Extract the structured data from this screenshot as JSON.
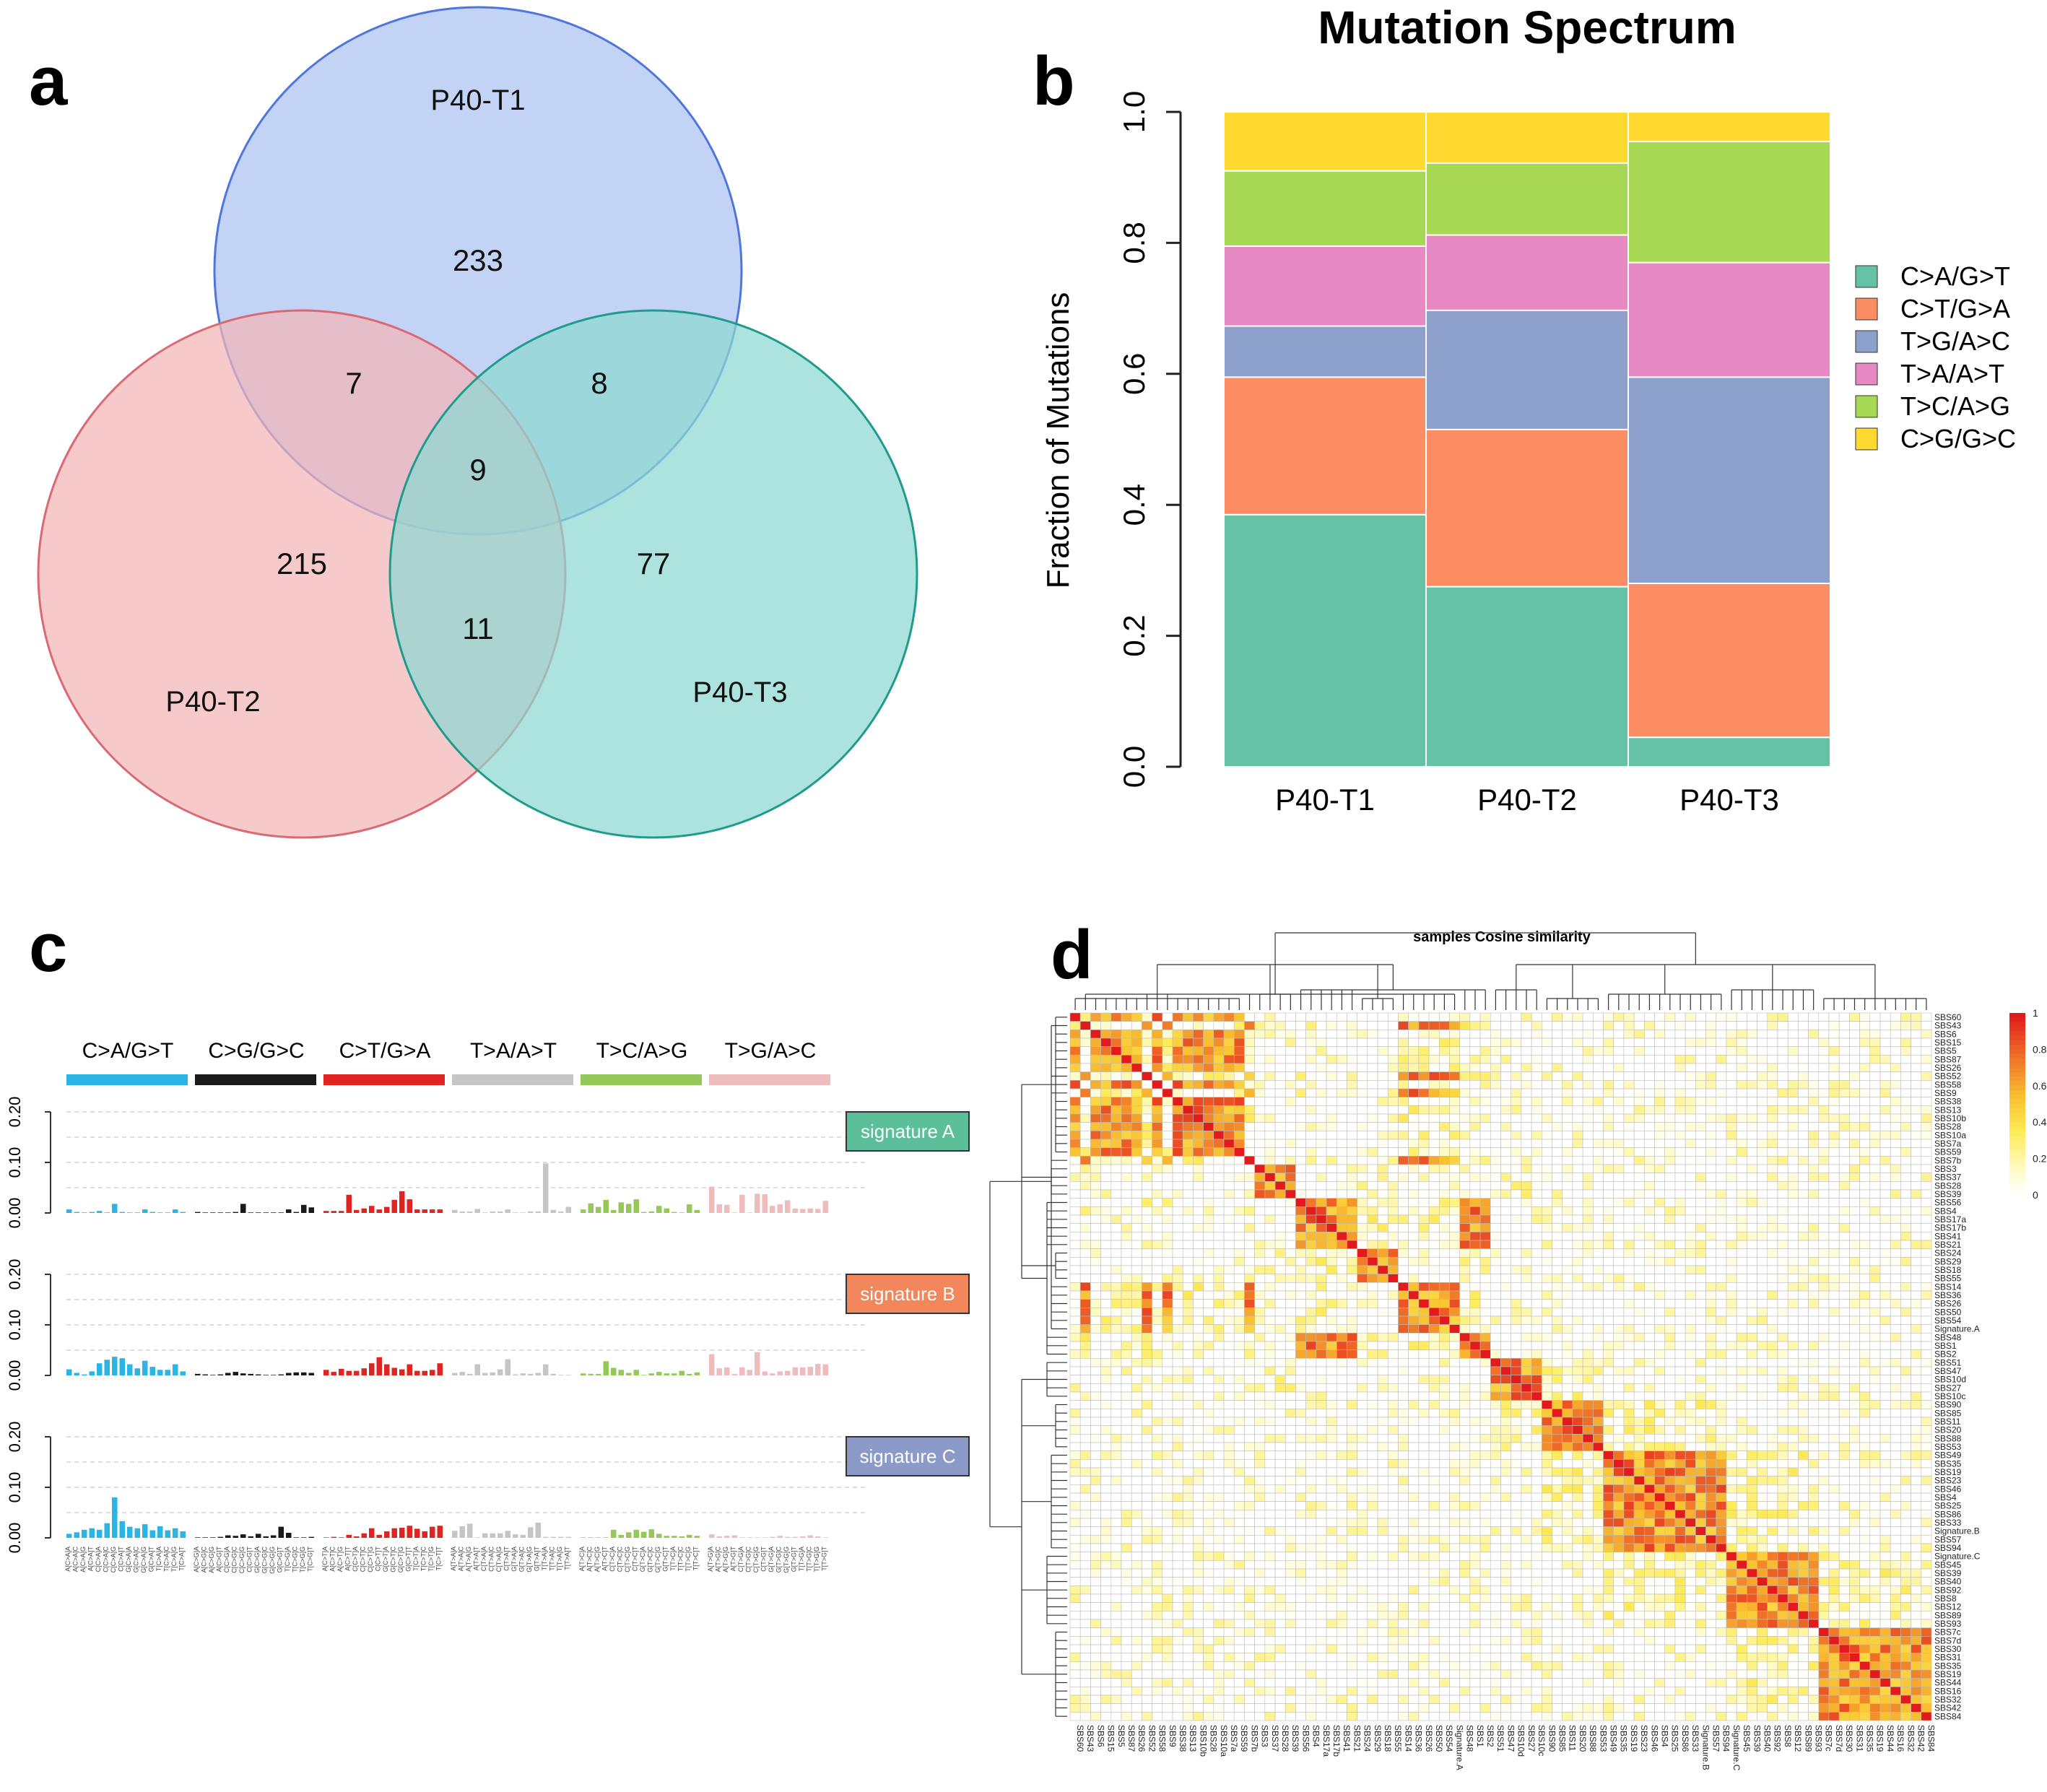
{
  "panel_letters": [
    "a",
    "b",
    "c",
    "d"
  ],
  "chart_data": [
    {
      "type": "venn",
      "panel": "a",
      "sets": [
        "P40-T1",
        "P40-T2",
        "P40-T3"
      ],
      "colors": [
        "#c4d4f6",
        "#f5c7c8",
        "#a8e0dc"
      ],
      "regions": {
        "T1_only": 233,
        "T2_only": 215,
        "T3_only": 77,
        "T1_T2": 7,
        "T1_T3": 8,
        "T2_T3": 11,
        "T1_T2_T3": 9
      }
    },
    {
      "type": "bar",
      "stacked": true,
      "panel": "b",
      "title": "Mutation Spectrum",
      "xlabel": "",
      "ylabel": "Fraction of Mutations",
      "ylim": [
        0,
        1
      ],
      "yticks": [
        "0.0",
        "0.2",
        "0.4",
        "0.6",
        "0.8",
        "1.0"
      ],
      "categories": [
        "P40-T1",
        "P40-T2",
        "P40-T3"
      ],
      "legend_position": "right",
      "series": [
        {
          "name": "C>A/G>T",
          "color": "#66c2a5",
          "values": [
            0.385,
            0.275,
            0.045
          ]
        },
        {
          "name": "C>T/G>A",
          "color": "#fc8d62",
          "values": [
            0.21,
            0.24,
            0.235
          ]
        },
        {
          "name": "T>G/A>C",
          "color": "#8da0cb",
          "values": [
            0.078,
            0.182,
            0.315
          ]
        },
        {
          "name": "T>A/A>T",
          "color": "#e78ac3",
          "values": [
            0.122,
            0.115,
            0.175
          ]
        },
        {
          "name": "T>C/A>G",
          "color": "#a6d854",
          "values": [
            0.115,
            0.11,
            0.185
          ]
        },
        {
          "name": "C>G/G>C",
          "color": "#ffd92f",
          "values": [
            0.09,
            0.078,
            0.045
          ]
        }
      ]
    },
    {
      "type": "bar",
      "panel": "c",
      "title": "",
      "ylim": [
        0,
        0.2
      ],
      "yticks": [
        "0.00",
        "0.10",
        "0.20"
      ],
      "groups": [
        {
          "name": "C>A/G>T",
          "color": "#2bb5e6"
        },
        {
          "name": "C>G/G>C",
          "color": "#1a1a1a"
        },
        {
          "name": "C>T/G>A",
          "color": "#e02422"
        },
        {
          "name": "T>A/A>T",
          "color": "#c5c5c5"
        },
        {
          "name": "T>C/A>G",
          "color": "#94c95a"
        },
        {
          "name": "T>G/A>C",
          "color": "#eebcbd"
        }
      ],
      "x_labels": [
        "A[C>A]A",
        "A[C>A]C",
        "A[C>A]G",
        "A[C>A]T",
        "C[C>A]A",
        "C[C>A]C",
        "C[C>A]G",
        "C[C>A]T",
        "G[C>A]A",
        "G[C>A]C",
        "G[C>A]G",
        "G[C>A]T",
        "T[C>A]A",
        "T[C>A]C",
        "T[C>A]G",
        "T[C>A]T",
        "A[C>G]A",
        "A[C>G]C",
        "A[C>G]G",
        "A[C>G]T",
        "C[C>G]A",
        "C[C>G]C",
        "C[C>G]G",
        "C[C>G]T",
        "G[C>G]A",
        "G[C>G]C",
        "G[C>G]G",
        "G[C>G]T",
        "T[C>G]A",
        "T[C>G]C",
        "T[C>G]G",
        "T[C>G]T",
        "A[C>T]A",
        "A[C>T]C",
        "A[C>T]G",
        "A[C>T]T",
        "C[C>T]A",
        "C[C>T]C",
        "C[C>T]G",
        "C[C>T]T",
        "G[C>T]A",
        "G[C>T]C",
        "G[C>T]G",
        "G[C>T]T",
        "T[C>T]A",
        "T[C>T]C",
        "T[C>T]G",
        "T[C>T]T",
        "A[T>A]A",
        "A[T>A]C",
        "A[T>A]G",
        "A[T>A]T",
        "C[T>A]A",
        "C[T>A]C",
        "C[T>A]G",
        "C[T>A]T",
        "G[T>A]A",
        "G[T>A]C",
        "G[T>A]G",
        "G[T>A]T",
        "T[T>A]A",
        "T[T>A]C",
        "T[T>A]G",
        "T[T>A]T",
        "A[T>C]A",
        "A[T>C]C",
        "A[T>C]G",
        "A[T>C]T",
        "C[T>C]A",
        "C[T>C]C",
        "C[T>C]G",
        "C[T>C]T",
        "G[T>C]A",
        "G[T>C]C",
        "G[T>C]G",
        "G[T>C]T",
        "T[T>C]A",
        "T[T>C]C",
        "T[T>C]G",
        "T[T>C]T",
        "A[T>G]A",
        "A[T>G]C",
        "A[T>G]G",
        "A[T>G]T",
        "C[T>G]A",
        "C[T>G]C",
        "C[T>G]G",
        "C[T>G]T",
        "G[T>G]A",
        "G[T>G]C",
        "G[T>G]G",
        "G[T>G]T",
        "T[T>G]A",
        "T[T>G]C",
        "T[T>G]G",
        "T[T>G]T"
      ],
      "signatures": [
        {
          "name": "signature A",
          "color": "#5bbf9a",
          "values": [
            0.007,
            0.002,
            0.001,
            0.002,
            0.004,
            0.001,
            0.018,
            0.002,
            0.001,
            0.001,
            0.007,
            0.002,
            0.001,
            0.001,
            0.007,
            0.002,
            0.002,
            0.001,
            0.001,
            0.001,
            0.001,
            0.002,
            0.018,
            0.001,
            0.001,
            0.001,
            0.001,
            0.001,
            0.007,
            0.002,
            0.016,
            0.011,
            0.004,
            0.004,
            0.004,
            0.036,
            0.006,
            0.009,
            0.014,
            0.007,
            0.012,
            0.026,
            0.043,
            0.027,
            0.007,
            0.007,
            0.007,
            0.007,
            0.006,
            0.003,
            0.003,
            0.008,
            0.001,
            0.003,
            0.003,
            0.007,
            0.001,
            0.001,
            0.003,
            0.003,
            0.098,
            0.006,
            0.003,
            0.012,
            0.007,
            0.019,
            0.012,
            0.026,
            0.006,
            0.021,
            0.018,
            0.027,
            0.002,
            0.003,
            0.014,
            0.009,
            0.002,
            0.001,
            0.017,
            0.006,
            0.052,
            0.017,
            0.016,
            0.001,
            0.036,
            0.001,
            0.038,
            0.037,
            0.014,
            0.017,
            0.025,
            0.009,
            0.008,
            0.009,
            0.008,
            0.024
          ]
        },
        {
          "name": "signature B",
          "color": "#f2875b",
          "values": [
            0.012,
            0.005,
            0.002,
            0.008,
            0.024,
            0.031,
            0.037,
            0.034,
            0.022,
            0.014,
            0.029,
            0.017,
            0.011,
            0.011,
            0.022,
            0.008,
            0.003,
            0.002,
            0.001,
            0.002,
            0.005,
            0.007,
            0.004,
            0.003,
            0.002,
            0.001,
            0.001,
            0.002,
            0.005,
            0.006,
            0.006,
            0.005,
            0.011,
            0.007,
            0.013,
            0.009,
            0.009,
            0.014,
            0.024,
            0.036,
            0.022,
            0.015,
            0.012,
            0.022,
            0.009,
            0.009,
            0.011,
            0.024,
            0.005,
            0.007,
            0.003,
            0.022,
            0.005,
            0.006,
            0.012,
            0.032,
            0.002,
            0.004,
            0.003,
            0.005,
            0.022,
            0.003,
            0.001,
            0.001,
            0.004,
            0.003,
            0.003,
            0.028,
            0.015,
            0.011,
            0.005,
            0.011,
            0.001,
            0.004,
            0.007,
            0.004,
            0.004,
            0.009,
            0.003,
            0.006,
            0.042,
            0.014,
            0.016,
            0.003,
            0.016,
            0.011,
            0.046,
            0.008,
            0.004,
            0.008,
            0.009,
            0.016,
            0.016,
            0.017,
            0.023,
            0.022
          ]
        },
        {
          "name": "signature C",
          "color": "#8b9ac8",
          "values": [
            0.008,
            0.011,
            0.016,
            0.019,
            0.016,
            0.029,
            0.08,
            0.033,
            0.022,
            0.019,
            0.027,
            0.015,
            0.023,
            0.015,
            0.019,
            0.013,
            0.001,
            0.001,
            0.001,
            0.002,
            0.005,
            0.004,
            0.007,
            0.003,
            0.008,
            0.003,
            0.005,
            0.022,
            0.01,
            0.001,
            0.001,
            0.002,
            0.001,
            0.002,
            0.001,
            0.006,
            0.003,
            0.009,
            0.019,
            0.006,
            0.013,
            0.019,
            0.02,
            0.024,
            0.018,
            0.013,
            0.022,
            0.024,
            0.014,
            0.023,
            0.028,
            0.001,
            0.009,
            0.009,
            0.009,
            0.014,
            0.007,
            0.006,
            0.021,
            0.03,
            0.002,
            0.002,
            0.002,
            0.002,
            0.001,
            0.001,
            0.001,
            0.001,
            0.016,
            0.006,
            0.011,
            0.016,
            0.012,
            0.017,
            0.008,
            0.004,
            0.004,
            0.003,
            0.006,
            0.004,
            0.007,
            0.003,
            0.004,
            0.005,
            0.001,
            0.001,
            0.001,
            0.001,
            0.002,
            0.004,
            0.002,
            0.002,
            0.003,
            0.005,
            0.003,
            0.001
          ]
        }
      ]
    },
    {
      "type": "heatmap",
      "panel": "d",
      "title": "samples Cosine similarity",
      "colorbar_ticks": [
        "1",
        "0.8",
        "0.6",
        "0.4",
        "0.2",
        "0"
      ],
      "colorscale": [
        "#ffffff",
        "#fff9b8",
        "#ffe03c",
        "#f9b234",
        "#f0762a",
        "#e31a1c"
      ],
      "x_labels": [
        "SBS60",
        "SBS43",
        "SBS6",
        "SBS15",
        "SBS5",
        "SBS87",
        "SBS26",
        "SBS52",
        "SBS58",
        "SBS9",
        "SBS38",
        "SBS13",
        "SBS10b",
        "SBS28",
        "SBS10a",
        "SBS7a",
        "SBS59",
        "SBS7b",
        "SBS3",
        "SBS37",
        "SBS28",
        "SBS39",
        "SBS56",
        "SBS4",
        "SBS17a",
        "SBS17b",
        "SBS41",
        "SBS21",
        "SBS24",
        "SBS29",
        "SBS18",
        "SBS55",
        "SBS14",
        "SBS36",
        "SBS26",
        "SBS50",
        "SBS54",
        "Signature.A",
        "SBS48",
        "SBS1",
        "SBS2",
        "SBS51",
        "SBS47",
        "SBS10d",
        "SBS27",
        "SBS10c",
        "SBS90",
        "SBS85",
        "SBS11",
        "SBS20",
        "SBS88",
        "SBS53",
        "SBS49",
        "SBS35",
        "SBS19",
        "SBS23",
        "SBS46",
        "SBS4",
        "SBS25",
        "SBS86",
        "SBS33",
        "Signature.B",
        "SBS57",
        "SBS94",
        "Signature.C",
        "SBS45",
        "SBS39",
        "SBS40",
        "SBS92",
        "SBS8",
        "SBS12",
        "SBS89",
        "SBS93",
        "SBS7c",
        "SBS7d",
        "SBS30",
        "SBS31",
        "SBS35",
        "SBS19",
        "SBS44",
        "SBS16",
        "SBS32",
        "SBS42",
        "SBS84"
      ],
      "row_labels": [
        "SBS60",
        "SBS43",
        "SBS6",
        "SBS15",
        "SBS5",
        "SBS87",
        "SBS26",
        "SBS52",
        "SBS58",
        "SBS9",
        "SBS38",
        "SBS13",
        "SBS10b",
        "SBS28",
        "SBS10a",
        "SBS7a",
        "SBS59",
        "SBS7b",
        "SBS3",
        "SBS37",
        "SBS28",
        "SBS39",
        "SBS56",
        "SBS4",
        "SBS17a",
        "SBS17b",
        "SBS41",
        "SBS21",
        "SBS24",
        "SBS29",
        "SBS18",
        "SBS55",
        "SBS14",
        "SBS36",
        "SBS26",
        "SBS50",
        "SBS54",
        "Signature.A",
        "SBS48",
        "SBS1",
        "SBS2",
        "SBS51",
        "SBS47",
        "SBS10d",
        "SBS27",
        "SBS10c",
        "SBS90",
        "SBS85",
        "SBS11",
        "SBS20",
        "SBS88",
        "SBS53",
        "SBS49",
        "SBS35",
        "SBS19",
        "SBS23",
        "SBS46",
        "SBS4",
        "SBS25",
        "SBS86",
        "SBS33",
        "Signature.B",
        "SBS57",
        "SBS94",
        "Signature.C",
        "SBS45",
        "SBS39",
        "SBS40",
        "SBS92",
        "SBS8",
        "SBS12",
        "SBS89",
        "SBS93",
        "SBS7c",
        "SBS7d",
        "SBS30",
        "SBS31",
        "SBS35",
        "SBS19",
        "SBS44",
        "SBS16",
        "SBS32",
        "SBS42",
        "SBS84"
      ],
      "clusters": [
        2,
        3,
        2,
        2,
        2,
        2,
        2,
        3,
        2,
        3,
        2,
        2,
        2,
        2,
        2,
        2,
        2,
        3,
        6,
        6,
        6,
        6,
        4,
        4,
        4,
        4,
        4,
        4,
        5,
        5,
        5,
        5,
        3,
        3,
        3,
        3,
        3,
        3,
        4,
        4,
        4,
        7,
        7,
        7,
        7,
        7,
        8,
        8,
        8,
        8,
        8,
        8,
        9,
        9,
        9,
        9,
        9,
        9,
        9,
        9,
        9,
        9,
        9,
        9,
        10,
        10,
        10,
        10,
        10,
        10,
        10,
        10,
        10,
        11,
        11,
        11,
        11,
        11,
        11,
        11,
        11,
        11,
        11,
        11
      ]
    }
  ]
}
